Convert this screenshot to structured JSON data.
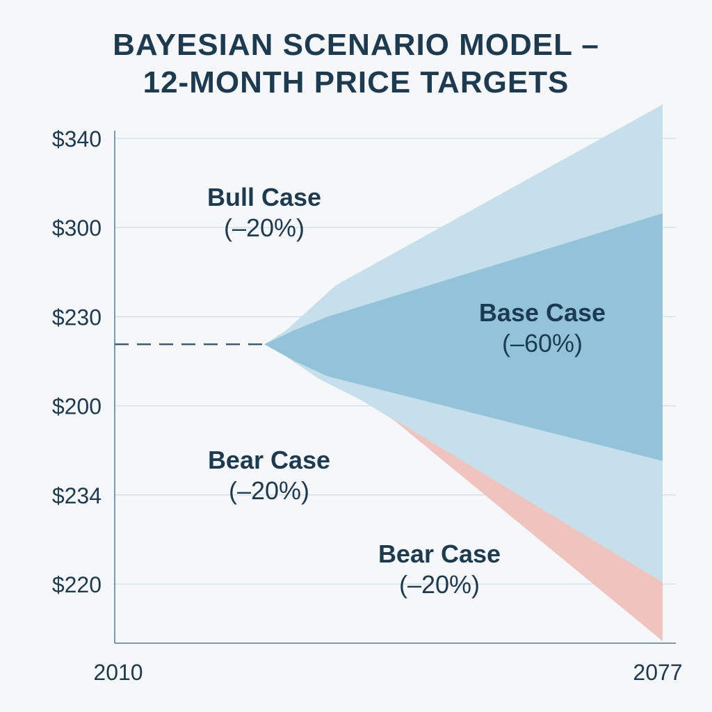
{
  "chart_data": {
    "type": "area",
    "title": "BAYESIAN SCENARIO MODEL –\n12-MONTH PRICE TARGETS",
    "xlabel": "",
    "ylabel": "",
    "x_ticks": [
      {
        "label": "2010",
        "value": 2010
      },
      {
        "label": "2077",
        "value": 2077
      }
    ],
    "xlim": [
      2010,
      2077
    ],
    "y_ticks": [
      {
        "label": "$220",
        "level": 0
      },
      {
        "label": "$234",
        "level": 1
      },
      {
        "label": "$200",
        "level": 2
      },
      {
        "label": "$230",
        "level": 3
      },
      {
        "label": "$300",
        "level": 4
      },
      {
        "label": "$340",
        "level": 5
      }
    ],
    "ylim_levels": [
      -0.66,
      5.38
    ],
    "grid": true,
    "current_price_line": {
      "style": "dashed",
      "x": [
        2010,
        2028.3
      ],
      "level": 2.69
    },
    "bands": [
      {
        "name": "Bull Case",
        "color": "#c5e0ea",
        "upper": [
          [
            2028.3,
            2.69
          ],
          [
            2031,
            2.85
          ],
          [
            2034,
            3.1
          ],
          [
            2037,
            3.35
          ],
          [
            2077,
            5.38
          ]
        ],
        "lower": [
          [
            2028.3,
            2.69
          ],
          [
            2032,
            2.85
          ],
          [
            2036,
            3.0
          ],
          [
            2077,
            4.16
          ]
        ]
      },
      {
        "name": "Base Case",
        "color": "#93c3d9",
        "upper": [
          [
            2028.3,
            2.69
          ],
          [
            2032,
            2.85
          ],
          [
            2036,
            3.0
          ],
          [
            2077,
            4.16
          ]
        ],
        "lower": [
          [
            2028.3,
            2.69
          ],
          [
            2032,
            2.5
          ],
          [
            2036,
            2.33
          ],
          [
            2077,
            1.38
          ]
        ]
      },
      {
        "name": "Bear Case",
        "color": "#c5e0ea",
        "upper": [
          [
            2028.3,
            2.69
          ],
          [
            2032,
            2.5
          ],
          [
            2036,
            2.33
          ],
          [
            2077,
            1.38
          ]
        ],
        "lower": [
          [
            2028.3,
            2.69
          ],
          [
            2031,
            2.55
          ],
          [
            2035,
            2.3
          ],
          [
            2040,
            2.07
          ],
          [
            2077,
            0.02
          ]
        ]
      },
      {
        "name": "Bear Case",
        "color": "#efc4bf",
        "upper": [
          [
            2043.6,
            1.88
          ],
          [
            2077,
            0.02
          ]
        ],
        "lower": [
          [
            2043.6,
            1.88
          ],
          [
            2077,
            -0.64
          ]
        ]
      }
    ],
    "annotations": [
      {
        "title": "Bull Case",
        "sub": "(–20%)"
      },
      {
        "title": "Base Case",
        "sub": "(–60%)"
      },
      {
        "title": "Bear Case",
        "sub": "(–20%)"
      },
      {
        "title": "Bear Case",
        "sub": "(–20%)"
      }
    ]
  }
}
